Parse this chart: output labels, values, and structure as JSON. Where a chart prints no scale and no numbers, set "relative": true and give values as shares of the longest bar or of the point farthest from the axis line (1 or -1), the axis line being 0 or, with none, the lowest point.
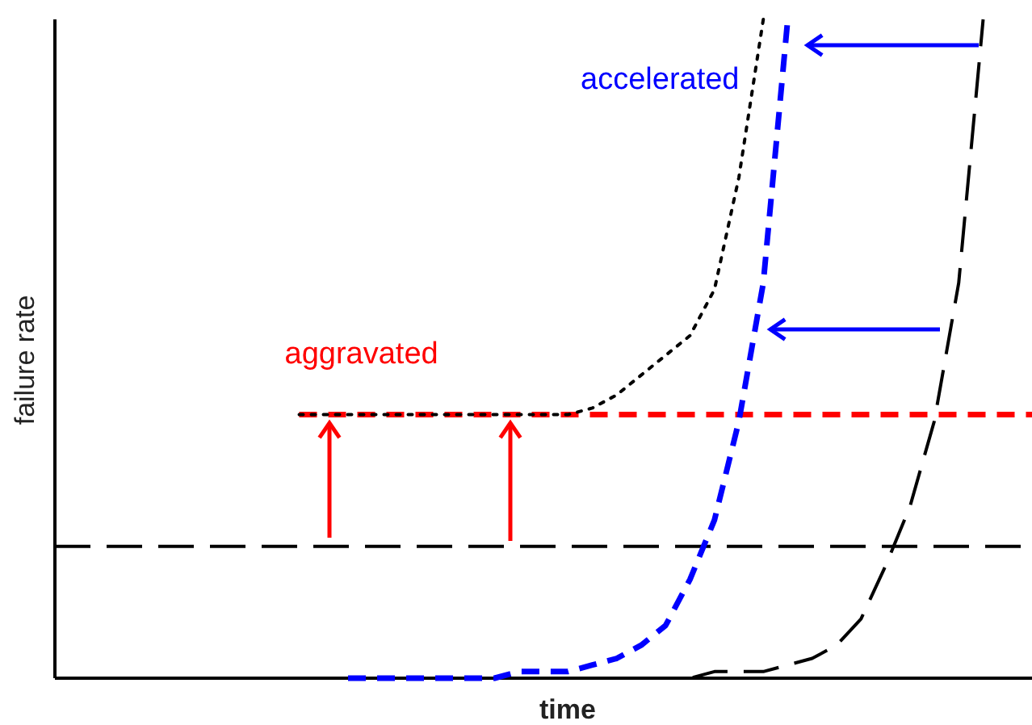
{
  "chart_data": {
    "type": "line",
    "relative": true,
    "xlabel": "time",
    "ylabel": "failure rate",
    "categories": [
      null,
      null,
      null,
      null,
      null,
      null,
      null,
      null,
      null,
      null,
      null,
      null,
      null,
      null,
      null,
      null,
      null,
      null,
      null,
      null,
      null,
      null,
      null,
      null,
      null,
      null,
      null,
      null,
      null,
      null,
      null,
      null,
      null,
      null,
      null,
      null,
      null,
      null,
      null,
      null,
      null
    ],
    "series": [
      {
        "color": "#000000",
        "line_style": "dashed",
        "values": [
          0.2,
          0.2,
          0.2,
          0.2,
          0.2,
          0.2,
          0.2,
          0.2,
          0.2,
          0.2,
          0.2,
          0.2,
          0.2,
          0.2,
          0.2,
          0.2,
          0.2,
          0.2,
          0.2,
          0.2,
          0.2,
          0.2,
          0.2,
          0.2,
          0.2,
          0.2,
          0.2,
          0.2,
          0.2,
          0.2,
          0.2,
          0.2,
          0.2,
          0.2,
          0.2,
          0.2,
          0.2,
          0.2,
          0.2,
          0.2,
          0.2
        ]
      },
      {
        "name": "aggravated",
        "color": "#ff0000",
        "line_style": "dashed",
        "values": [
          null,
          null,
          null,
          null,
          null,
          null,
          null,
          null,
          null,
          null,
          0.4,
          0.4,
          0.4,
          0.4,
          0.4,
          0.4,
          0.4,
          0.4,
          0.4,
          0.4,
          0.4,
          0.4,
          0.4,
          0.4,
          0.4,
          0.4,
          0.4,
          0.4,
          0.4,
          0.4,
          0.4,
          0.4,
          0.4,
          0.4,
          0.4,
          0.4,
          0.4,
          0.4,
          0.4,
          0.4,
          0.4
        ]
      },
      {
        "color": "#000000",
        "line_style": "dotted",
        "values": [
          null,
          null,
          null,
          null,
          null,
          null,
          null,
          null,
          null,
          null,
          0.4,
          0.4,
          0.4,
          0.4,
          0.4,
          0.4,
          0.4,
          0.4,
          0.4,
          0.4,
          0.4,
          0.4,
          0.41,
          0.43,
          0.46,
          0.49,
          0.52,
          0.59,
          0.76,
          1.0,
          null,
          null,
          null,
          null,
          null,
          null,
          null,
          null,
          null,
          null,
          null
        ]
      },
      {
        "name": "accelerated",
        "color": "#0000ff",
        "line_style": "dashed",
        "values": [
          null,
          null,
          null,
          null,
          null,
          null,
          null,
          null,
          null,
          null,
          null,
          null,
          0,
          0,
          0,
          0,
          0,
          0,
          0,
          0.01,
          0.01,
          0.01,
          0.02,
          0.03,
          0.05,
          0.08,
          0.15,
          0.24,
          0.39,
          0.6,
          1.0,
          null,
          null,
          null,
          null,
          null,
          null,
          null,
          null,
          null,
          null
        ]
      },
      {
        "color": "#000000",
        "line_style": "dashed",
        "values": [
          null,
          null,
          null,
          null,
          null,
          null,
          null,
          null,
          null,
          null,
          null,
          null,
          null,
          null,
          null,
          null,
          null,
          null,
          null,
          null,
          null,
          null,
          null,
          null,
          0,
          0,
          0,
          0.01,
          0.01,
          0.01,
          0.02,
          0.03,
          0.05,
          0.09,
          0.17,
          0.26,
          0.39,
          0.6,
          1.0,
          null,
          null
        ]
      }
    ]
  }
}
